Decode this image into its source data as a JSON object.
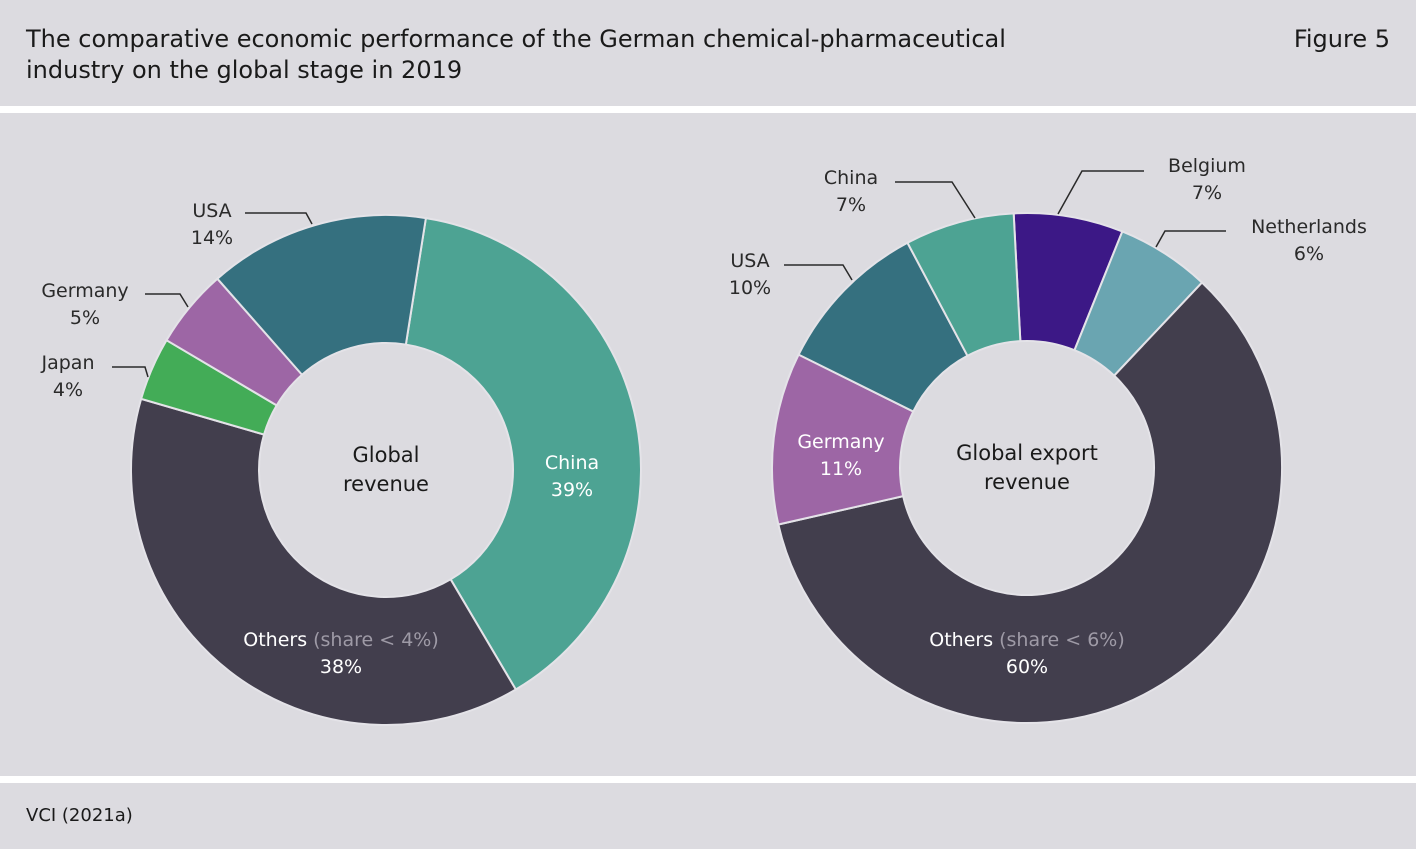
{
  "header": {
    "title": "The comparative economic performance of the German chemical-pharmaceutical\nindustry on the global stage in 2019",
    "figure_label": "Figure 5"
  },
  "footer": {
    "source": "VCI (2021a)"
  },
  "chart_data": [
    {
      "type": "pie",
      "title": "",
      "center_label": [
        "Global",
        "revenue"
      ],
      "slices": [
        {
          "label": "China",
          "value": 39,
          "value_label": "39%",
          "color": "#4da393"
        },
        {
          "label": "Others",
          "note": "(share < 4%)",
          "value": 38,
          "value_label": "38%",
          "color": "#423e4d"
        },
        {
          "label": "Japan",
          "value": 4,
          "value_label": "4%",
          "color": "#43ac57"
        },
        {
          "label": "Germany",
          "value": 5,
          "value_label": "5%",
          "color": "#9d66a5"
        },
        {
          "label": "USA",
          "value": 14,
          "value_label": "14%",
          "color": "#35707f"
        }
      ]
    },
    {
      "type": "pie",
      "title": "",
      "center_label": [
        "Global export",
        "revenue"
      ],
      "slices": [
        {
          "label": "Belgium",
          "value": 7,
          "value_label": "7%",
          "color": "#3c1886"
        },
        {
          "label": "Netherlands",
          "value": 6,
          "value_label": "6%",
          "color": "#6aa5b1"
        },
        {
          "label": "Others",
          "note": "(share < 6%)",
          "value": 60,
          "value_label": "60%",
          "color": "#423e4d"
        },
        {
          "label": "Germany",
          "value": 11,
          "value_label": "11%",
          "color": "#9d66a5"
        },
        {
          "label": "USA",
          "value": 10,
          "value_label": "10%",
          "color": "#35707f"
        },
        {
          "label": "China",
          "value": 7,
          "value_label": "7%",
          "color": "#4da393"
        }
      ]
    }
  ]
}
